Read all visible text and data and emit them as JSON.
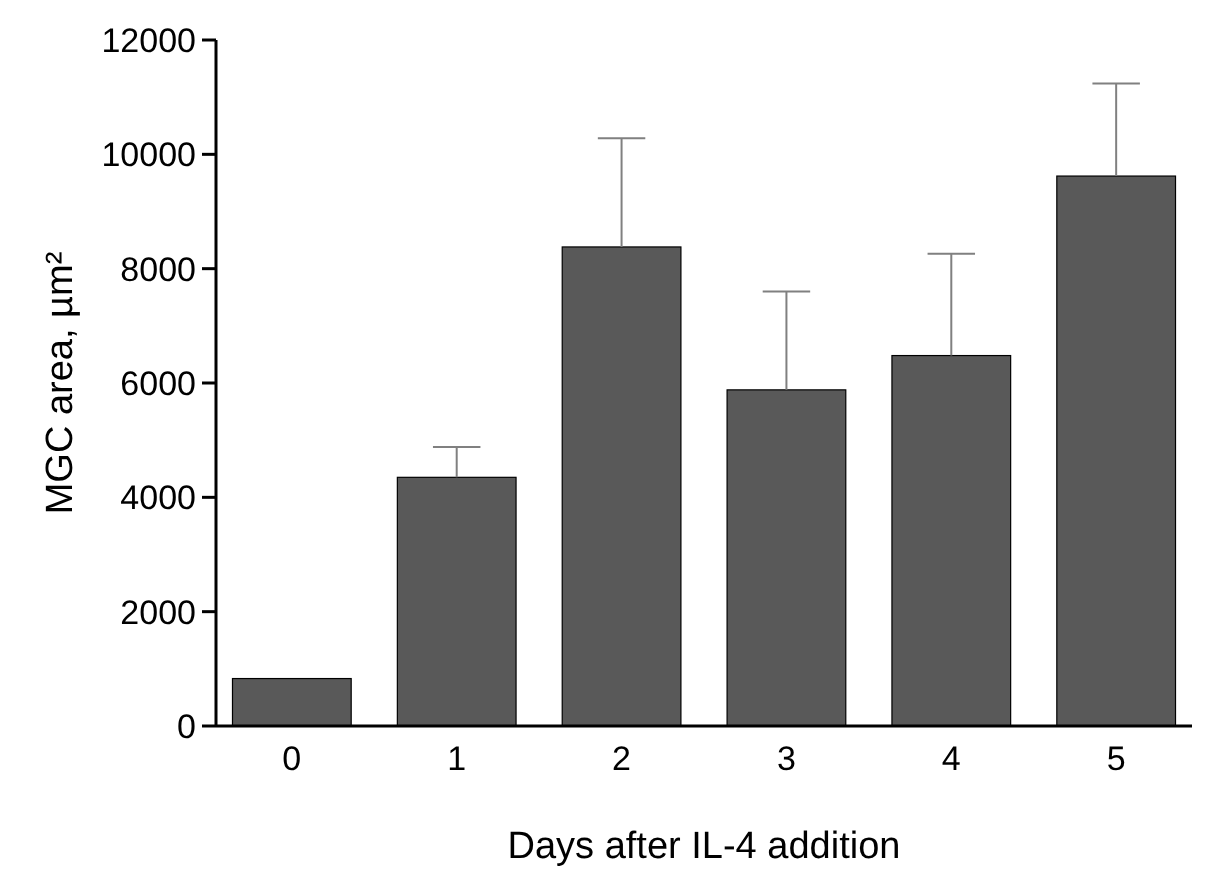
{
  "chart_data": {
    "type": "bar",
    "xlabel": "Days after IL-4 addition",
    "ylabel": "MGC area, µm²",
    "categories": [
      "0",
      "1",
      "2",
      "3",
      "4",
      "5"
    ],
    "values": [
      830,
      4350,
      8380,
      5880,
      6480,
      9620
    ],
    "errors": [
      null,
      [
        4350,
        4880
      ],
      [
        8380,
        10280
      ],
      [
        5880,
        7600
      ],
      [
        6480,
        8260
      ],
      [
        9620,
        11240
      ]
    ],
    "color": "#595959",
    "ylim": [
      0,
      12000
    ],
    "yticks": [
      0,
      2000,
      4000,
      6000,
      8000,
      10000,
      12000
    ],
    "grid": false
  }
}
